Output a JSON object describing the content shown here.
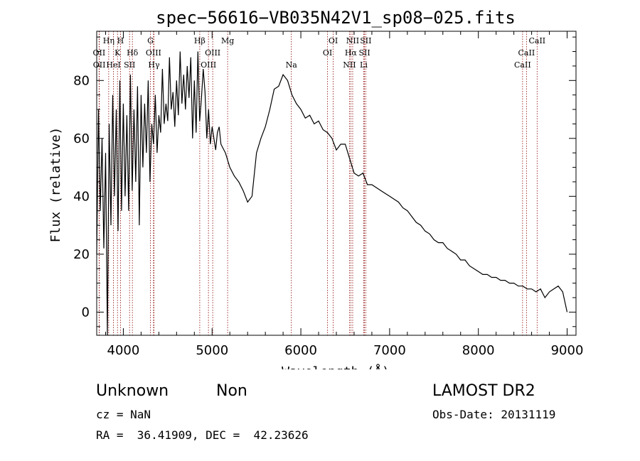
{
  "chart_data": {
    "type": "line",
    "title": "spec−56616−VB035N42V1_sp08−025.fits",
    "xlabel": "Wavelength (Å)",
    "ylabel": "Flux (relative)",
    "xlim": [
      3700,
      9100
    ],
    "ylim": [
      -8,
      97
    ],
    "xticks": [
      4000,
      5000,
      6000,
      7000,
      8000,
      9000
    ],
    "yticks": [
      0,
      20,
      40,
      60,
      80
    ],
    "series": [
      {
        "x": [
          3700,
          3720,
          3740,
          3760,
          3780,
          3800,
          3820,
          3840,
          3860,
          3880,
          3900,
          3920,
          3940,
          3960,
          3980,
          4000,
          4020,
          4040,
          4060,
          4080,
          4100,
          4120,
          4140,
          4160,
          4180,
          4200,
          4220,
          4240,
          4260,
          4280,
          4300,
          4320,
          4340,
          4360,
          4380,
          4400,
          4420,
          4440,
          4460,
          4480,
          4500,
          4520,
          4540,
          4560,
          4580,
          4600,
          4620,
          4640,
          4660,
          4680,
          4700,
          4720,
          4740,
          4760,
          4780,
          4800,
          4820,
          4840,
          4860,
          4880,
          4900,
          4920,
          4940,
          4960,
          4980,
          5000,
          5020,
          5040,
          5060,
          5080,
          5100,
          5150,
          5200,
          5250,
          5300,
          5350,
          5400,
          5450,
          5500,
          5550,
          5600,
          5650,
          5700,
          5750,
          5800,
          5850,
          5900,
          5950,
          6000,
          6050,
          6100,
          6150,
          6200,
          6250,
          6300,
          6350,
          6400,
          6450,
          6500,
          6550,
          6600,
          6650,
          6700,
          6750,
          6800,
          6850,
          6900,
          6950,
          7000,
          7050,
          7100,
          7150,
          7200,
          7250,
          7300,
          7350,
          7400,
          7450,
          7500,
          7550,
          7600,
          7650,
          7700,
          7750,
          7800,
          7850,
          7900,
          7950,
          8000,
          8050,
          8100,
          8150,
          8200,
          8250,
          8300,
          8350,
          8400,
          8450,
          8500,
          8550,
          8600,
          8650,
          8700,
          8750,
          8800,
          8850,
          8900,
          8950,
          9000
        ],
        "y": [
          20,
          70,
          35,
          60,
          22,
          55,
          -8,
          65,
          30,
          75,
          40,
          70,
          28,
          80,
          35,
          72,
          40,
          68,
          35,
          82,
          42,
          70,
          45,
          78,
          30,
          75,
          50,
          72,
          55,
          80,
          45,
          65,
          58,
          75,
          55,
          68,
          62,
          84,
          65,
          72,
          66,
          88,
          70,
          76,
          64,
          80,
          68,
          90,
          72,
          82,
          70,
          85,
          74,
          88,
          60,
          80,
          62,
          90,
          66,
          74,
          84,
          76,
          60,
          70,
          58,
          64,
          60,
          56,
          62,
          64,
          58,
          55,
          50,
          47,
          45,
          42,
          38,
          40,
          55,
          60,
          64,
          70,
          77,
          78,
          82,
          80,
          75,
          72,
          70,
          67,
          68,
          65,
          66,
          63,
          62,
          60,
          56,
          58,
          58,
          53,
          48,
          47,
          48,
          44,
          44,
          43,
          42,
          41,
          40,
          39,
          38,
          36,
          35,
          33,
          31,
          30,
          28,
          27,
          25,
          24,
          24,
          22,
          21,
          20,
          18,
          18,
          16,
          15,
          14,
          13,
          13,
          12,
          12,
          11,
          11,
          10,
          10,
          9,
          9,
          8,
          8,
          7,
          8,
          5,
          7,
          8,
          9,
          7,
          0
        ]
      }
    ],
    "lines": [
      {
        "label": "OII",
        "x": 3727,
        "row": 2
      },
      {
        "label": "OII",
        "x": 3729,
        "row": 3
      },
      {
        "label": "Hη",
        "x": 3835,
        "row": 1
      },
      {
        "label": "HeI",
        "x": 3889,
        "row": 3
      },
      {
        "label": "K",
        "x": 3934,
        "row": 2
      },
      {
        "label": "H",
        "x": 3968,
        "row": 1
      },
      {
        "label": "SII",
        "x": 4070,
        "row": 3
      },
      {
        "label": "Hδ",
        "x": 4102,
        "row": 2
      },
      {
        "label": "G",
        "x": 4305,
        "row": 1
      },
      {
        "label": "OIII",
        "x": 4340,
        "row": 2
      },
      {
        "label": "Hγ",
        "x": 4345,
        "row": 3
      },
      {
        "label": "Hβ",
        "x": 4861,
        "row": 1
      },
      {
        "label": "OIII",
        "x": 4959,
        "row": 3
      },
      {
        "label": "OIII",
        "x": 5007,
        "row": 2
      },
      {
        "label": "Mg",
        "x": 5175,
        "row": 1
      },
      {
        "label": "Na",
        "x": 5893,
        "row": 3
      },
      {
        "label": "OI",
        "x": 6300,
        "row": 2
      },
      {
        "label": "OI",
        "x": 6364,
        "row": 1
      },
      {
        "label": "NII",
        "x": 6548,
        "row": 3
      },
      {
        "label": "Hα",
        "x": 6563,
        "row": 2
      },
      {
        "label": "NII",
        "x": 6584,
        "row": 1
      },
      {
        "label": "SII",
        "x": 6717,
        "row": 2
      },
      {
        "label": "SII",
        "x": 6731,
        "row": 1
      },
      {
        "label": "Li",
        "x": 6708,
        "row": 3
      },
      {
        "label": "CaII",
        "x": 8498,
        "row": 3
      },
      {
        "label": "CaII",
        "x": 8542,
        "row": 2
      },
      {
        "label": "CaII",
        "x": 8662,
        "row": 1
      }
    ]
  },
  "info": {
    "class": "Unknown",
    "subclass": "Non",
    "survey": "LAMOST DR2",
    "cz": "cz = NaN",
    "obs_date": "Obs-Date: 20131119",
    "radec": "RA =  36.41909, DEC =  42.23626"
  },
  "colors": {
    "trace": "#000000",
    "line_marker": "#8b0000",
    "axis": "#000000"
  }
}
